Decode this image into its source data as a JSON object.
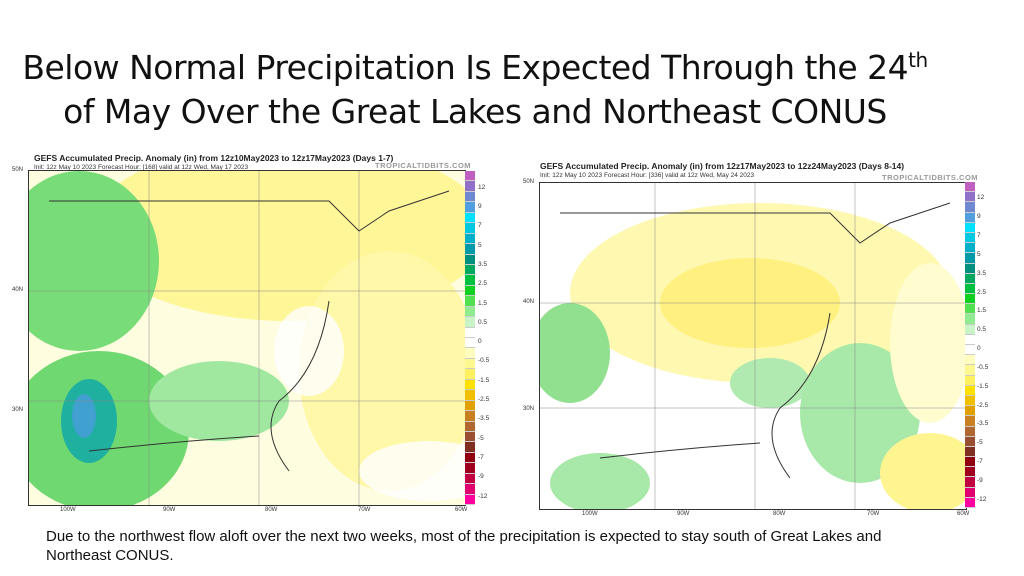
{
  "slide": {
    "title_line1": "Below Normal Precipitation Is Expected Through the 24",
    "title_sup": "th",
    "title_line2": "of May Over the Great Lakes and Northeast CONUS",
    "caption": "Due to the northwest flow aloft over the next two weeks, most of the precipitation is expected to stay south of Great Lakes and Northeast CONUS."
  },
  "maps": [
    {
      "title": "GEFS Accumulated Precip. Anomaly (in) from 12z10May2023 to 12z17May2023 (Days 1-7)",
      "subtitle": "Init: 12z May 10 2023   Forecast Hour: [168]   valid at 12z Wed, May 17 2023",
      "brand": "TROPICALTIDBITS.COM"
    },
    {
      "title": "GEFS Accumulated Precip. Anomaly (in) from 12z17May2023 to 12z24May2023 (Days 8-14)",
      "subtitle": "Init: 12z May 10 2023   Forecast Hour: [336]   valid at 12z Wed, May 24 2023",
      "brand": "TROPICALTIDBITS.COM"
    }
  ],
  "lat_labels": [
    "50N",
    "40N",
    "30N"
  ],
  "lon_labels": [
    "100W",
    "90W",
    "80W",
    "70W",
    "60W"
  ],
  "colorbar_labels": [
    "12",
    "9",
    "7",
    "5",
    "3.5",
    "2.5",
    "1.5",
    "0.5",
    "0",
    "-0.5",
    "-1.5",
    "-2.5",
    "-3.5",
    "-5",
    "-7",
    "-9",
    "-12"
  ],
  "colorbar_colors": [
    "#c060c0",
    "#9070c8",
    "#7088d0",
    "#50a0e0",
    "#00e0ff",
    "#00c8e0",
    "#00b0c8",
    "#009aa8",
    "#009080",
    "#00a860",
    "#00c040",
    "#10d020",
    "#50e050",
    "#90ea90",
    "#c8f4c8",
    "#ffffff",
    "#ffffff",
    "#fffcc0",
    "#fff890",
    "#fff060",
    "#ffe000",
    "#f0c000",
    "#e0a000",
    "#c88020",
    "#b06830",
    "#985030",
    "#803020",
    "#900010",
    "#a00020",
    "#c00040",
    "#e00070",
    "#ff00a0"
  ]
}
